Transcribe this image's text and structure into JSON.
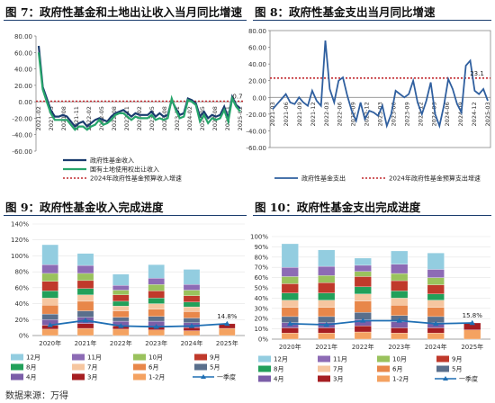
{
  "source": "数据来源：万得",
  "colors": {
    "navy": "#1a3c6e",
    "green": "#27a56b",
    "dark_red": "#c0282d",
    "blue": "#2f5f9f",
    "marker": "#1f6fb4"
  },
  "chart_data": [
    {
      "title": "图 7：政府性基金和土地出让收入当月同比增速",
      "type": "line",
      "ylim": [
        -60,
        80
      ],
      "yticks": [
        "80.00",
        "60.00",
        "40.00",
        "20.00",
        "0.00",
        "-20.00",
        "-40.00",
        "-60.00"
      ],
      "ytick_values": [
        80,
        60,
        40,
        20,
        0,
        -20,
        -40,
        -60
      ],
      "x_tick_labels": [
        "2021-02",
        "2021-05",
        "2021-08",
        "2021-11",
        "2022-02",
        "2022-05",
        "2022-08",
        "2022-11",
        "2023-02",
        "2023-05",
        "2023-08",
        "2023-11",
        "2024-02",
        "2024-05",
        "2024-08",
        "2024-11",
        "2025-02"
      ],
      "legend_position": "bottom-right",
      "annotation": "0.7",
      "series": [
        {
          "name": "政府性基金收入",
          "color": "#1a3c6e",
          "values": [
            68,
            18,
            4,
            -10,
            -18,
            -18,
            -16,
            -18,
            -24,
            -30,
            -26,
            -24,
            -30,
            -26,
            -22,
            -20,
            -22,
            -24,
            -18,
            -14,
            -12,
            -10,
            -14,
            -18,
            -14,
            -16,
            -16,
            -16,
            -12,
            -18,
            -14,
            -18,
            -16,
            2,
            -8,
            -16,
            -14,
            4,
            2,
            -2,
            -18,
            -12,
            -20,
            -16,
            -18,
            -16,
            -6,
            -20,
            6,
            -4,
            -8
          ]
        },
        {
          "name": "国有土地使用权出让收入",
          "color": "#27a56b",
          "values": [
            60,
            15,
            0,
            -14,
            -22,
            -22,
            -22,
            -22,
            -28,
            -34,
            -30,
            -30,
            -34,
            -30,
            -28,
            -22,
            -28,
            -26,
            -22,
            -16,
            -14,
            -14,
            -18,
            -22,
            -18,
            -20,
            -20,
            -20,
            -16,
            -22,
            -20,
            -22,
            -20,
            4,
            -10,
            -20,
            -18,
            2,
            0,
            -4,
            -24,
            -16,
            -26,
            -20,
            -22,
            -20,
            -10,
            -24,
            4,
            -6,
            -12
          ]
        },
        {
          "name": "2024年政府性基金预算收入增速",
          "color": "#c0282d",
          "values": [
            0.7
          ]
        }
      ]
    },
    {
      "title": "图 8：政府性基金支出当月同比增速",
      "type": "line",
      "ylim": [
        -60,
        80
      ],
      "yticks": [
        "80.00",
        "60.00",
        "40.00",
        "20.00",
        "0.00",
        "-20.00",
        "-40.00",
        "-60.00"
      ],
      "ytick_values": [
        80,
        60,
        40,
        20,
        0,
        -20,
        -40,
        -60
      ],
      "x_tick_labels": [
        "2021-03",
        "2021-06",
        "2021-09",
        "2021-12",
        "2022-03",
        "2022-06",
        "2022-09",
        "2022-12",
        "2023-03",
        "2023-06",
        "2023-09",
        "2023-12",
        "2024-03",
        "2024-06",
        "2024-09",
        "2024-12",
        "2025-03"
      ],
      "legend_position": "bottom",
      "annotation": "23.1",
      "series": [
        {
          "name": "政府性基金支出",
          "color": "#2f5f9f",
          "values": [
            -14,
            -8,
            -2,
            4,
            -6,
            -8,
            0,
            -6,
            -10,
            8,
            -4,
            -10,
            68,
            10,
            -6,
            20,
            24,
            2,
            -16,
            -28,
            -6,
            -26,
            -16,
            -18,
            -22,
            -10,
            -34,
            -20,
            8,
            4,
            0,
            4,
            20,
            -6,
            -20,
            -4,
            18,
            -20,
            -34,
            -10,
            22,
            10,
            -8,
            -18,
            38,
            44,
            8,
            4,
            10,
            -4
          ]
        },
        {
          "name": "2024年政府性基金预算支出增速",
          "color": "#c0282d",
          "values": [
            23.1
          ]
        }
      ]
    },
    {
      "title": "图 9：政府性基金收入完成进度",
      "type": "bar",
      "stacked": true,
      "ylim": [
        0,
        140
      ],
      "yticks": [
        "0%",
        "20%",
        "40%",
        "60%",
        "80%",
        "100%",
        "120%",
        "140%"
      ],
      "ytick_values": [
        0,
        20,
        40,
        60,
        80,
        100,
        120,
        140
      ],
      "categories": [
        "2020年",
        "2021年",
        "2022年",
        "2023年",
        "2024年",
        "2025年"
      ],
      "legend_position": "bottom",
      "annotation": "14.8%",
      "stack_order": [
        "1-2月",
        "3月",
        "4月",
        "5月",
        "6月",
        "7月",
        "8月",
        "9月",
        "10月",
        "11月",
        "12月"
      ],
      "segments": {
        "1-2月": [
          8,
          9,
          8,
          7,
          6,
          9
        ],
        "3月": [
          5,
          6,
          4,
          4,
          4,
          5.8
        ],
        "4月": [
          7,
          8,
          6,
          7,
          6,
          0
        ],
        "5月": [
          7,
          8,
          5,
          6,
          6,
          0
        ],
        "6月": [
          11,
          12,
          8,
          9,
          8,
          0
        ],
        "7月": [
          9,
          8,
          6,
          7,
          6,
          0
        ],
        "8月": [
          9,
          8,
          6,
          7,
          6,
          0
        ],
        "9月": [
          12,
          10,
          8,
          9,
          8,
          0
        ],
        "10月": [
          10,
          9,
          6,
          8,
          7,
          0
        ],
        "11月": [
          11,
          10,
          6,
          8,
          7,
          0
        ],
        "12月": [
          25,
          15,
          14,
          17,
          19,
          0
        ]
      },
      "quarter_line": {
        "name": "一季度",
        "values": [
          13,
          19,
          12,
          11,
          12,
          14.8
        ]
      },
      "legend": [
        "12月",
        "11月",
        "10月",
        "9月",
        "8月",
        "7月",
        "6月",
        "5月",
        "4月",
        "3月",
        "1-2月",
        "一季度"
      ]
    },
    {
      "title": "图 10：政府性基金支出完成进度",
      "type": "bar",
      "stacked": true,
      "ylim": [
        0,
        100
      ],
      "yticks": [
        "0%",
        "10%",
        "20%",
        "30%",
        "40%",
        "50%",
        "60%",
        "70%",
        "80%",
        "90%",
        "100%"
      ],
      "ytick_values": [
        0,
        10,
        20,
        30,
        40,
        50,
        60,
        70,
        80,
        90,
        100
      ],
      "categories": [
        "2020年",
        "2021年",
        "2022年",
        "2023年",
        "2024年",
        "2025年"
      ],
      "legend_position": "bottom",
      "annotation": "15.8%",
      "stack_order": [
        "1-2月",
        "3月",
        "4月",
        "5月",
        "6月",
        "7月",
        "8月",
        "9月",
        "10月",
        "11月",
        "12月"
      ],
      "segments": {
        "1-2月": [
          6,
          6,
          7,
          6,
          6,
          9
        ],
        "3月": [
          5,
          5,
          6,
          5,
          5,
          6.8
        ],
        "4月": [
          5,
          5,
          6,
          6,
          5,
          0
        ],
        "5月": [
          6,
          6,
          7,
          6,
          6,
          0
        ],
        "6月": [
          9,
          9,
          11,
          10,
          9,
          0
        ],
        "7月": [
          7,
          7,
          7,
          7,
          7,
          0
        ],
        "8月": [
          7,
          7,
          7,
          7,
          6,
          0
        ],
        "9月": [
          9,
          10,
          10,
          10,
          9,
          0
        ],
        "10月": [
          7,
          7,
          5,
          7,
          7,
          0
        ],
        "11月": [
          9,
          9,
          6,
          9,
          8,
          0
        ],
        "12月": [
          23,
          16,
          7,
          13,
          16,
          0
        ]
      },
      "quarter_line": {
        "name": "一季度",
        "values": [
          15,
          14,
          18,
          18,
          15,
          15.8
        ]
      },
      "legend": [
        "12月",
        "11月",
        "10月",
        "9月",
        "8月",
        "7月",
        "6月",
        "5月",
        "4月",
        "3月",
        "1-2月",
        "一季度"
      ]
    }
  ]
}
